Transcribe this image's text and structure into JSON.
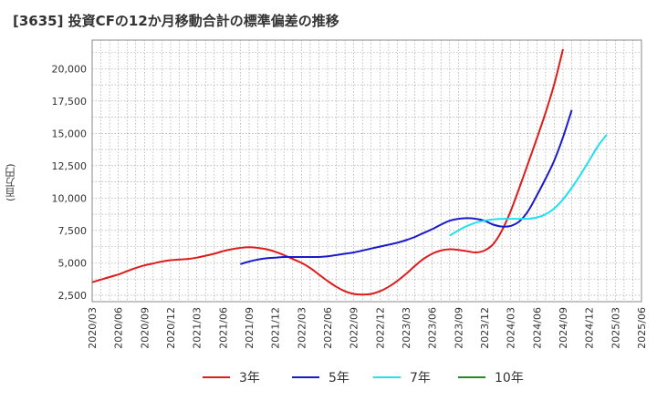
{
  "chart_data": {
    "type": "line",
    "title": "[3635]  投資CFの12か月移動合計の標準偏差の推移",
    "ylabel": "(百万円)",
    "xlabel": "",
    "x_ticks": [
      "2020/03",
      "2020/06",
      "2020/09",
      "2020/12",
      "2021/03",
      "2021/06",
      "2021/09",
      "2021/12",
      "2022/03",
      "2022/06",
      "2022/09",
      "2022/12",
      "2023/03",
      "2023/06",
      "2023/09",
      "2023/12",
      "2024/03",
      "2024/06",
      "2024/09",
      "2024/12",
      "2025/03",
      "2025/06"
    ],
    "y_ticks": [
      2500,
      5000,
      7500,
      10000,
      12500,
      15000,
      17500,
      20000
    ],
    "y_tick_labels": [
      "2,500",
      "5,000",
      "7,500",
      "10,000",
      "12,500",
      "15,000",
      "17,500",
      "20,000"
    ],
    "ylim": [
      2000,
      22200
    ],
    "grid": true,
    "legend_position": "bottom",
    "series": [
      {
        "name": "3年",
        "color": "#dd1c1c",
        "start": "2020/03",
        "values": [
          3500,
          3700,
          3900,
          4100,
          4350,
          4600,
          4800,
          4950,
          5100,
          5200,
          5250,
          5300,
          5400,
          5550,
          5700,
          5900,
          6050,
          6150,
          6200,
          6150,
          6050,
          5850,
          5600,
          5300,
          5000,
          4600,
          4100,
          3600,
          3150,
          2800,
          2600,
          2550,
          2600,
          2800,
          3150,
          3600,
          4150,
          4750,
          5300,
          5700,
          5950,
          6050,
          6000,
          5900,
          5800,
          5950,
          6450,
          7500,
          9000,
          10800,
          12700,
          14600,
          16600,
          18800,
          21500
        ]
      },
      {
        "name": "5年",
        "color": "#1a1acc",
        "start": "2021/08",
        "values": [
          4900,
          5100,
          5250,
          5350,
          5400,
          5450,
          5450,
          5450,
          5450,
          5450,
          5500,
          5600,
          5700,
          5800,
          5950,
          6100,
          6250,
          6400,
          6550,
          6750,
          7000,
          7300,
          7600,
          7950,
          8250,
          8400,
          8450,
          8400,
          8250,
          7950,
          7800,
          7850,
          8200,
          9000,
          10200,
          11500,
          12900,
          14700,
          16800
        ]
      },
      {
        "name": "7年",
        "color": "#22e0ee",
        "start": "2023/08",
        "values": [
          7100,
          7500,
          7850,
          8100,
          8250,
          8350,
          8400,
          8400,
          8400,
          8400,
          8500,
          8750,
          9200,
          9900,
          10800,
          11800,
          12900,
          14000,
          14900
        ]
      },
      {
        "name": "10年",
        "color": "#228b22",
        "start": "2025/03",
        "values": []
      }
    ]
  }
}
